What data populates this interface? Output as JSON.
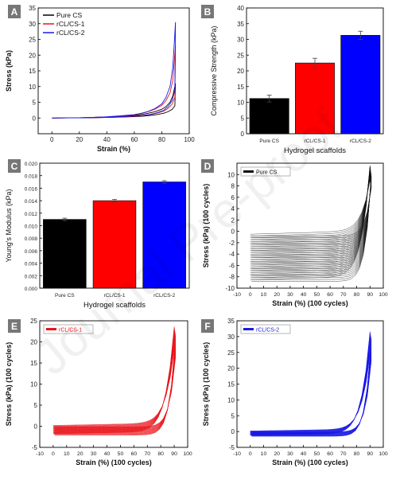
{
  "watermark_text": "Journal Pre-proof",
  "colors": {
    "pure": "#000000",
    "cl1": "#e8141b",
    "cl2": "#1a1ae6",
    "letter_bg": "#777777"
  },
  "chart_data": [
    {
      "letter": "A",
      "type": "line",
      "xlabel": "Strain (%)",
      "ylabel": "Stress (kPa)",
      "xlim": [
        -10,
        100
      ],
      "ylim": [
        -5,
        35
      ],
      "xticks": [
        0,
        20,
        40,
        60,
        80,
        100
      ],
      "yticks": [
        0,
        5,
        10,
        15,
        20,
        25,
        30,
        35
      ],
      "legend": "top-left",
      "series": [
        {
          "name": "Pure CS",
          "color": "#000000",
          "peak": 11,
          "x": [
            0,
            10,
            20,
            30,
            40,
            50,
            60,
            65,
            70,
            75,
            80,
            83,
            86,
            88,
            90
          ],
          "y": [
            0,
            0.05,
            0.1,
            0.2,
            0.3,
            0.5,
            0.8,
            1.1,
            1.5,
            2.0,
            2.8,
            3.6,
            5,
            7,
            11
          ]
        },
        {
          "name": "rCL/CS-1",
          "color": "#e8141b",
          "peak": 23,
          "x": [
            0,
            10,
            20,
            30,
            40,
            50,
            60,
            65,
            70,
            75,
            80,
            83,
            86,
            88,
            90
          ],
          "y": [
            0,
            0.05,
            0.1,
            0.2,
            0.35,
            0.6,
            1.0,
            1.4,
            2.0,
            2.8,
            4,
            5.5,
            8,
            12,
            23
          ]
        },
        {
          "name": "rCL/CS-2",
          "color": "#1a1ae6",
          "peak": 30.5,
          "x": [
            0,
            10,
            20,
            30,
            40,
            50,
            60,
            65,
            70,
            75,
            80,
            83,
            86,
            88,
            90
          ],
          "y": [
            0,
            0.05,
            0.1,
            0.2,
            0.4,
            0.7,
            1.1,
            1.5,
            2.1,
            3.0,
            4.5,
            6.5,
            10,
            16,
            30.5
          ]
        }
      ]
    },
    {
      "letter": "B",
      "type": "bar",
      "xlabel": "Hydrogel scaffolds",
      "ylabel": "Compressive Strength (kPa)",
      "ylim": [
        0,
        40
      ],
      "yticks": [
        0,
        5,
        10,
        15,
        20,
        25,
        30,
        35,
        40
      ],
      "categories": [
        "Pure CS",
        "rCL/CS-1",
        "rCL/CS-2"
      ],
      "values": [
        11.2,
        22.5,
        31.3
      ],
      "errors": [
        1.1,
        1.5,
        1.3
      ],
      "colors": [
        "#000000",
        "#ff0000",
        "#0000ff"
      ]
    },
    {
      "letter": "C",
      "type": "bar",
      "xlabel": "Hydrogel scaffolds",
      "ylabel": "Young's Modulus (kPa)",
      "ylim": [
        0,
        0.02
      ],
      "yticks": [
        "0.000",
        "0.002",
        "0.004",
        "0.006",
        "0.008",
        "0.010",
        "0.012",
        "0.014",
        "0.016",
        "0.018",
        "0.020"
      ],
      "categories": [
        "Pure CS",
        "rCL/CS-1",
        "rCL/CS-2"
      ],
      "values": [
        0.011,
        0.014,
        0.017
      ],
      "errors": [
        0.0002,
        0.0002,
        0.0002
      ],
      "colors": [
        "#000000",
        "#ff0000",
        "#0000ff"
      ]
    },
    {
      "letter": "D",
      "type": "line",
      "xlabel": "Strain (%) (100 cycles)",
      "ylabel": "Stress (kPa) (100 cycles)",
      "xlim": [
        -10,
        100
      ],
      "ylim": [
        -10,
        12
      ],
      "xticks": [
        -10,
        0,
        10,
        20,
        30,
        40,
        50,
        60,
        70,
        80,
        90,
        100
      ],
      "yticks": [
        -10,
        -8,
        -6,
        -4,
        -2,
        0,
        2,
        4,
        6,
        8,
        10
      ],
      "legend": "top-left",
      "series": [
        {
          "name": "Pure CS",
          "color": "#111111",
          "cycles": 100,
          "peak": 11,
          "baseline": [
            -8.5,
            -0.5
          ]
        }
      ]
    },
    {
      "letter": "E",
      "type": "line",
      "xlabel": "Strain (%) (100 cycles)",
      "ylabel": "Stress (kPa) (100 cycles)",
      "xlim": [
        -10,
        100
      ],
      "ylim": [
        -5,
        25
      ],
      "xticks": [
        -10,
        0,
        10,
        20,
        30,
        40,
        50,
        60,
        70,
        80,
        90,
        100
      ],
      "yticks": [
        -5,
        0,
        5,
        10,
        15,
        20,
        25
      ],
      "legend": "top-left",
      "series": [
        {
          "name": "rCL/CS-1",
          "color": "#e8141b",
          "cycles": 100,
          "peak": 23,
          "baseline": [
            -1.8,
            0.2
          ]
        }
      ]
    },
    {
      "letter": "F",
      "type": "line",
      "xlabel": "Strain (%) (100 cycles)",
      "ylabel": "Stress (kPa) (100 cycles)",
      "xlim": [
        -10,
        100
      ],
      "ylim": [
        -5,
        35
      ],
      "xticks": [
        -10,
        0,
        10,
        20,
        30,
        40,
        50,
        60,
        70,
        80,
        90,
        100
      ],
      "yticks": [
        -5,
        0,
        5,
        10,
        15,
        20,
        25,
        30,
        35
      ],
      "legend": "top-left",
      "series": [
        {
          "name": "rCL/CS-2",
          "color": "#1a1ae6",
          "cycles": 100,
          "peak": 31,
          "baseline": [
            -1.2,
            0.2
          ]
        }
      ]
    }
  ]
}
